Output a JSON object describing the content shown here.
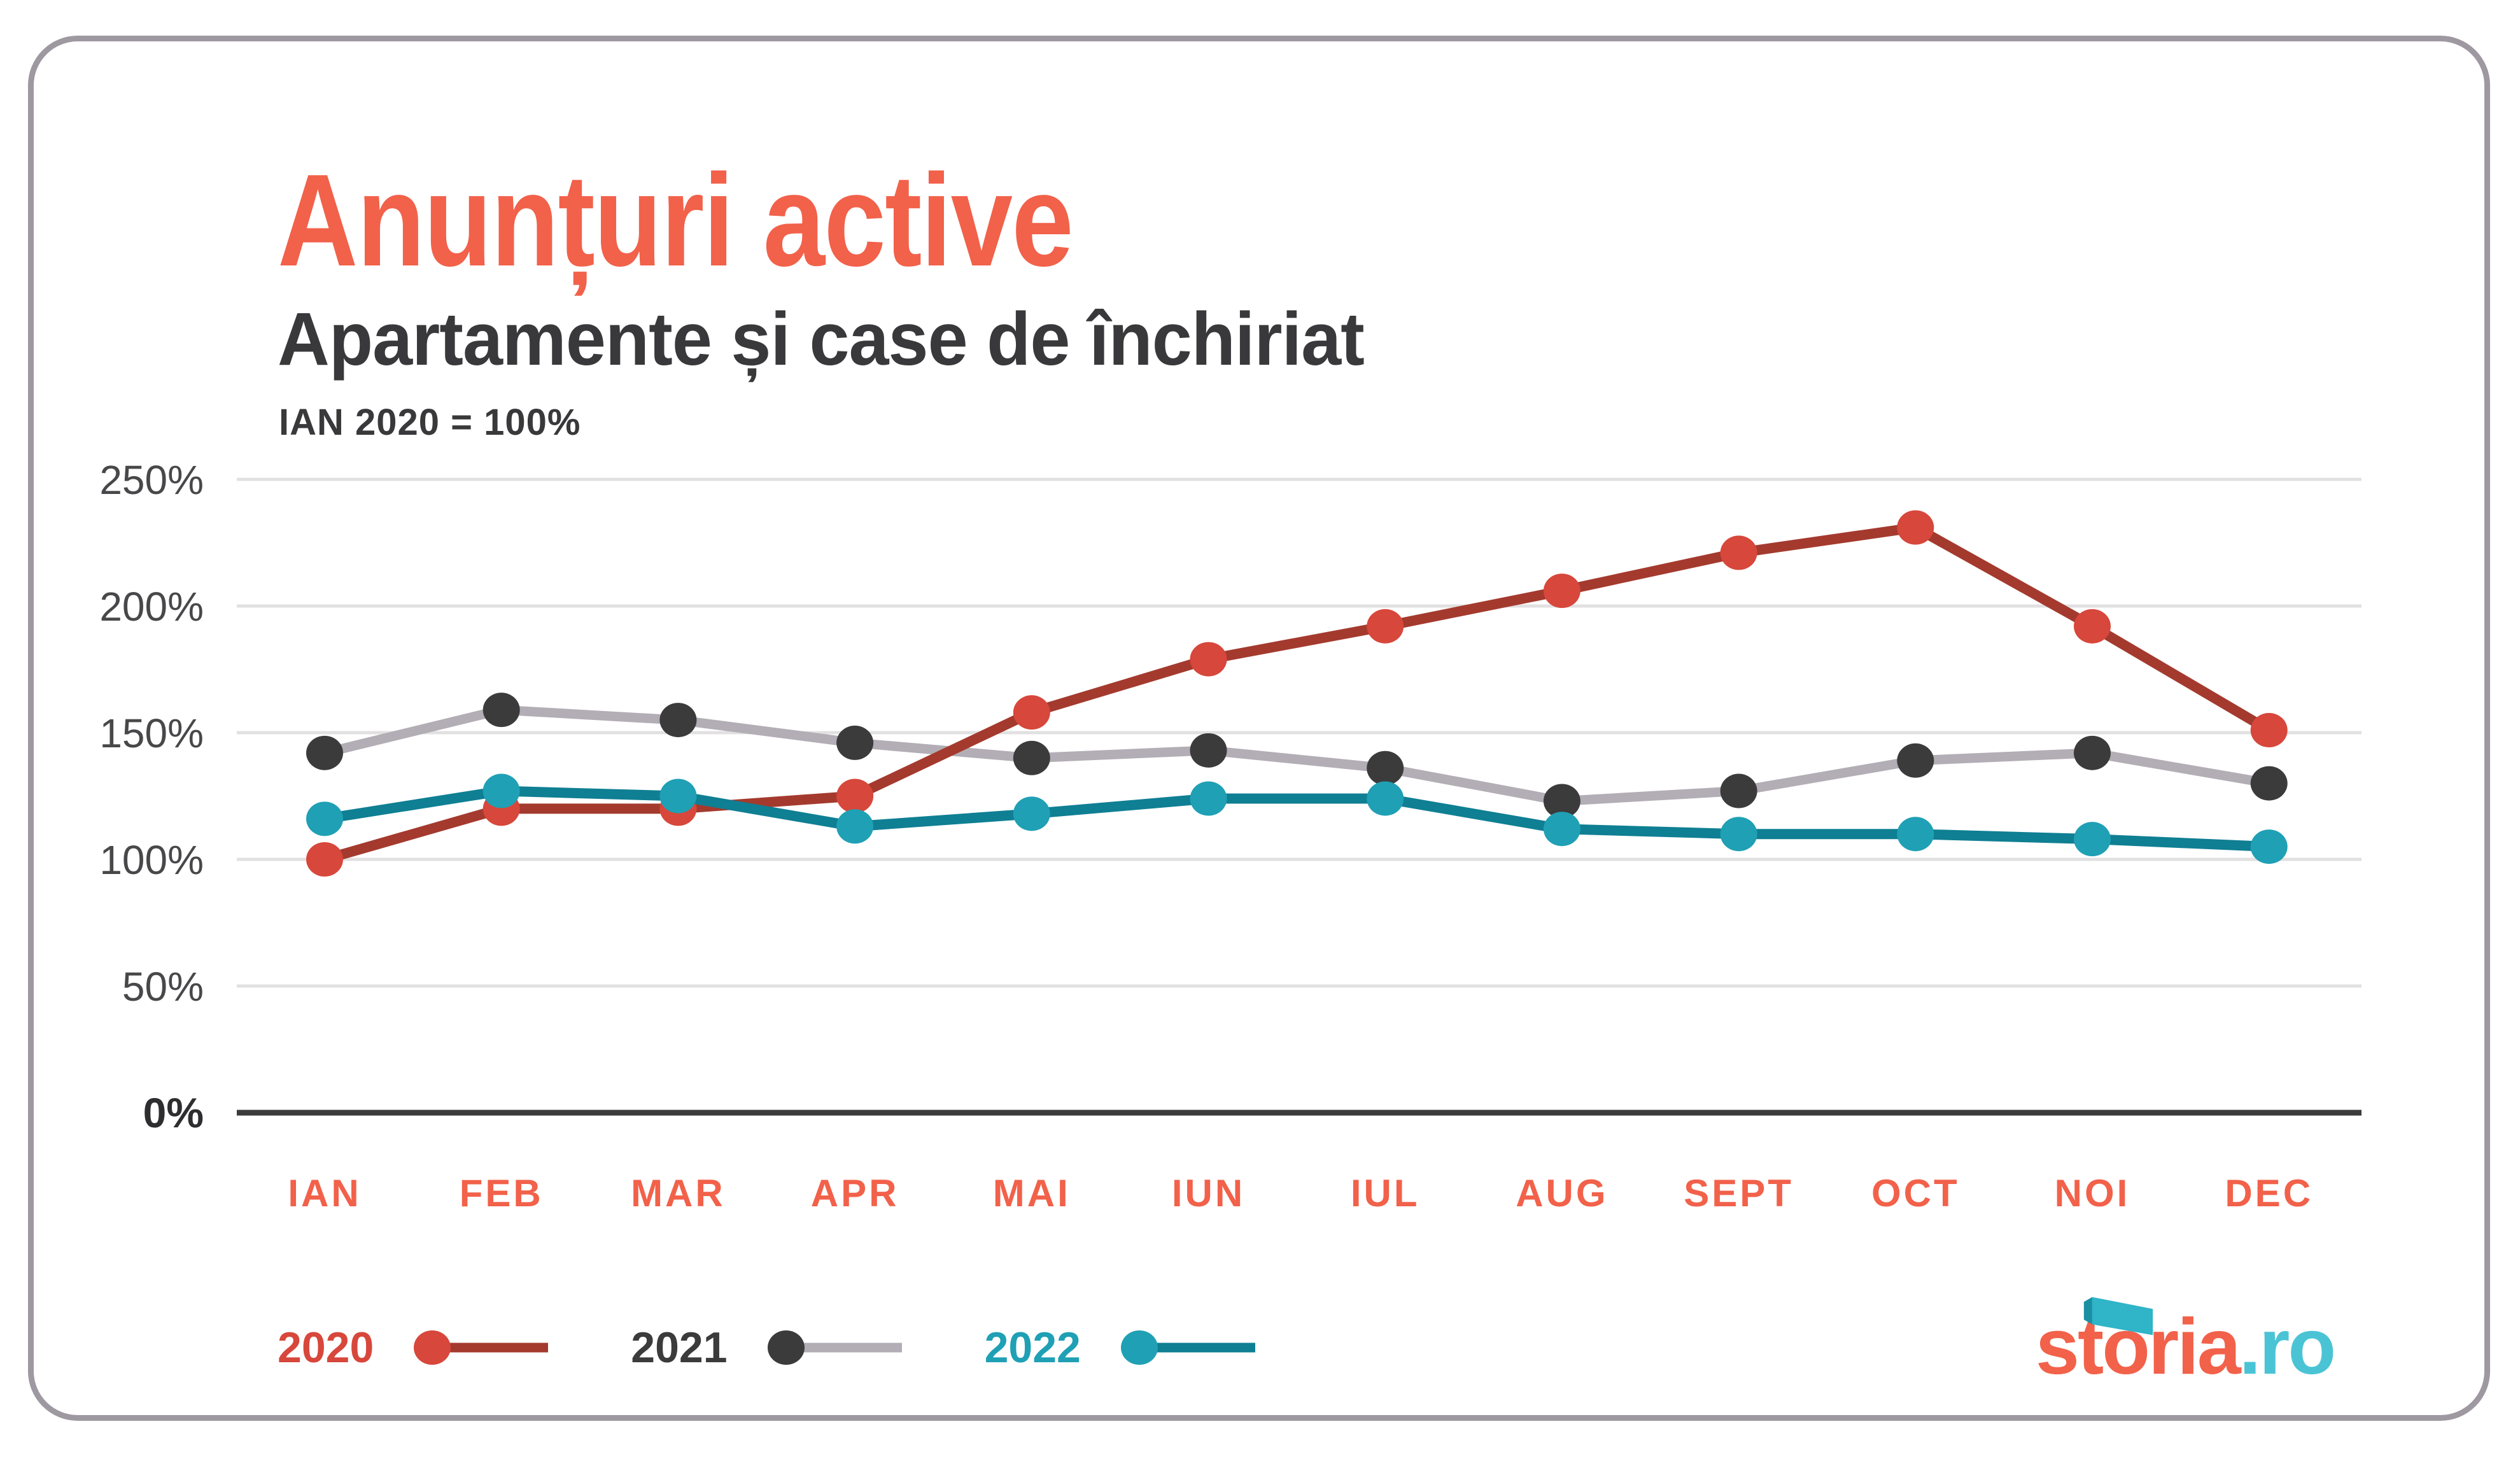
{
  "card": {
    "background": "#ffffff",
    "border_color": "#9E98A1"
  },
  "header": {
    "title": "Anunțuri active",
    "title_color": "#F2614A",
    "subtitle": "Apartamente și case de închiriat",
    "subtitle_color": "#39383A",
    "note": "IAN 2020 = 100%",
    "note_color": "#39383A"
  },
  "chart_data": {
    "type": "line",
    "title": "Anunțuri active",
    "subtitle": "Apartamente și case de închiriat",
    "baseline_note": "IAN 2020 = 100%",
    "categories": [
      "IAN",
      "FEB",
      "MAR",
      "APR",
      "MAI",
      "IUN",
      "IUL",
      "AUG",
      "SEPT",
      "OCT",
      "NOI",
      "DEC"
    ],
    "y_ticks": [
      250,
      200,
      150,
      100,
      50,
      0
    ],
    "y_tick_suffix": "%",
    "ylim": [
      0,
      250
    ],
    "grid": "horizontal",
    "legend_position": "bottom-left",
    "series": [
      {
        "name": "2020",
        "dot_color": "#D7473B",
        "line_color": "#A43A2E",
        "values": [
          100,
          120,
          120,
          125,
          158,
          179,
          192,
          206,
          221,
          231,
          192,
          151
        ]
      },
      {
        "name": "2021",
        "dot_color": "#3B3B3B",
        "line_color": "#B3ADB5",
        "values": [
          142,
          159,
          155,
          146,
          140,
          143,
          136,
          123,
          127,
          139,
          142,
          130
        ]
      },
      {
        "name": "2022",
        "dot_color": "#1FA0B5",
        "line_color": "#0F7F93",
        "values": [
          116,
          127,
          125,
          113,
          118,
          124,
          124,
          112,
          110,
          110,
          108,
          105
        ]
      }
    ],
    "colors": {
      "grid_color": "#E2E0E1",
      "axis_color": "#3B3B3B",
      "tick_label_color": "#48484A",
      "zero_label_color": "#2E2E30",
      "month_label_color": "#F2614A"
    }
  },
  "legend": {
    "items": [
      {
        "label": "2020",
        "label_color": "#D7473B",
        "dot_color": "#D7473B",
        "line_color": "#A43A2E"
      },
      {
        "label": "2021",
        "label_color": "#3B3B3B",
        "dot_color": "#3B3B3B",
        "line_color": "#B3ADB5"
      },
      {
        "label": "2022",
        "label_color": "#1FA0B5",
        "dot_color": "#1FA0B5",
        "line_color": "#0F7F93"
      }
    ]
  },
  "logo": {
    "text_primary": "storia",
    "text_secondary": ".ro",
    "primary_color": "#F2614A",
    "secondary_color": "#4AC4D5",
    "flag_color": "#2FB4C8",
    "flag_fold_color": "#1B8FA4"
  }
}
